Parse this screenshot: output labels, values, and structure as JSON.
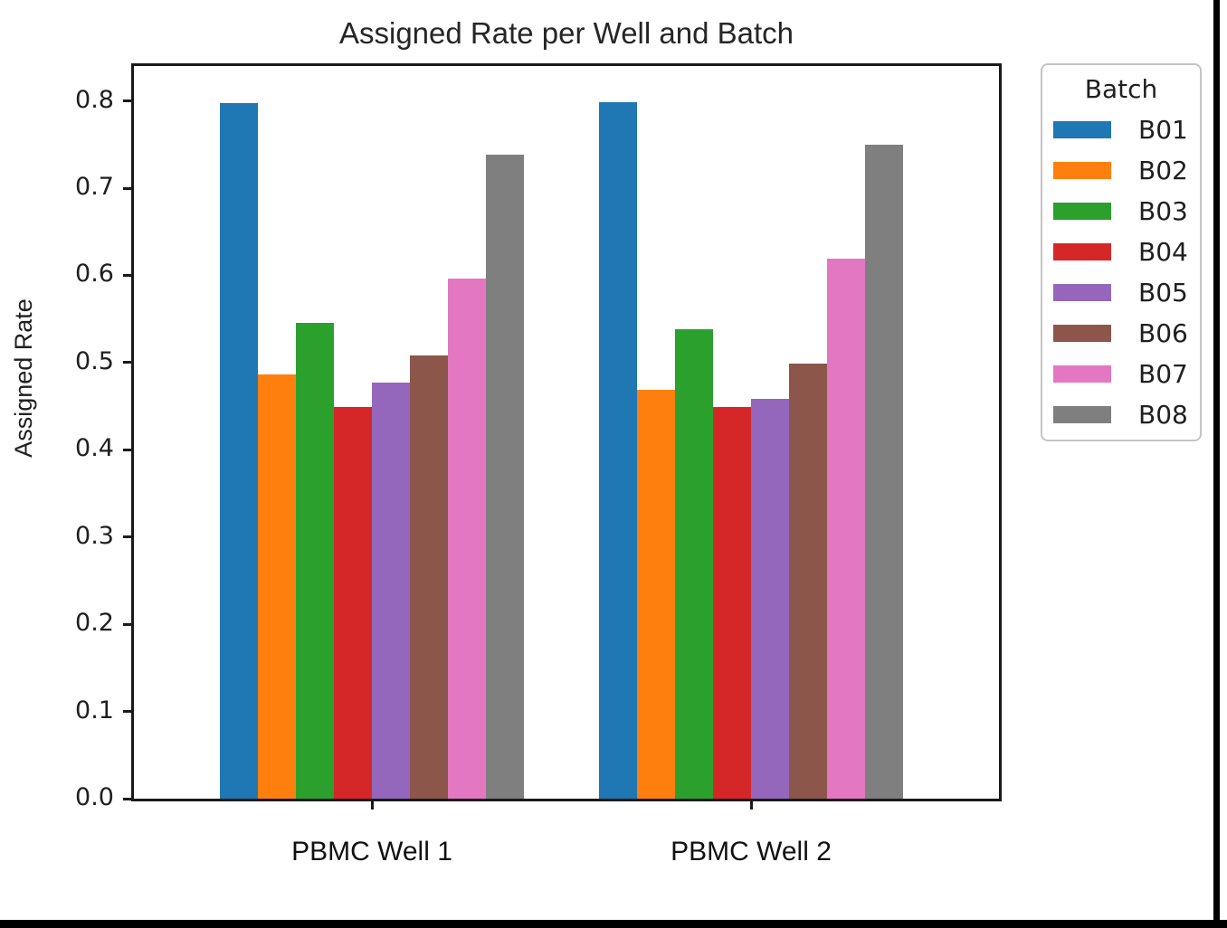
{
  "chart_data": {
    "type": "bar",
    "title": "Assigned Rate per Well and Batch",
    "xlabel": "",
    "ylabel": "Assigned Rate",
    "categories": [
      "PBMC Well 1",
      "PBMC Well 2"
    ],
    "y_ticks": [
      0.0,
      0.1,
      0.2,
      0.3,
      0.4,
      0.5,
      0.6,
      0.7,
      0.8
    ],
    "ylim": [
      0.0,
      0.84
    ],
    "grid": false,
    "legend": {
      "title": "Batch",
      "position": "outside-upper-right"
    },
    "series": [
      {
        "name": "B01",
        "color": "#1f77b4",
        "values": [
          0.798,
          0.799
        ]
      },
      {
        "name": "B02",
        "color": "#ff7f0e",
        "values": [
          0.486,
          0.469
        ]
      },
      {
        "name": "B03",
        "color": "#2ca02c",
        "values": [
          0.546,
          0.538
        ]
      },
      {
        "name": "B04",
        "color": "#d62728",
        "values": [
          0.449,
          0.449
        ]
      },
      {
        "name": "B05",
        "color": "#9467bd",
        "values": [
          0.477,
          0.458
        ]
      },
      {
        "name": "B06",
        "color": "#8c564b",
        "values": [
          0.508,
          0.499
        ]
      },
      {
        "name": "B07",
        "color": "#e377c2",
        "values": [
          0.596,
          0.619
        ]
      },
      {
        "name": "B08",
        "color": "#7f7f7f",
        "values": [
          0.738,
          0.75
        ]
      }
    ]
  }
}
